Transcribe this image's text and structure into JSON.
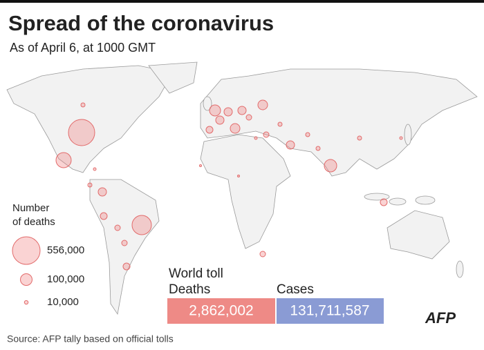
{
  "header": {
    "title": "Spread of the coronavirus",
    "subtitle": "As of April 6, at 1000 GMT"
  },
  "legend": {
    "title_lines": [
      "Number",
      "of deaths"
    ],
    "items": [
      {
        "value": 556000,
        "label": "556,000"
      },
      {
        "value": 100000,
        "label": "100,000"
      },
      {
        "value": 10000,
        "label": "10,000"
      }
    ]
  },
  "toll": {
    "title": "World toll",
    "deaths_label": "Deaths",
    "deaths": "2,862,002",
    "cases_label": "Cases",
    "cases": "131,711,587"
  },
  "source": "Source: AFP tally based on official tolls",
  "logo": "AFP"
}
